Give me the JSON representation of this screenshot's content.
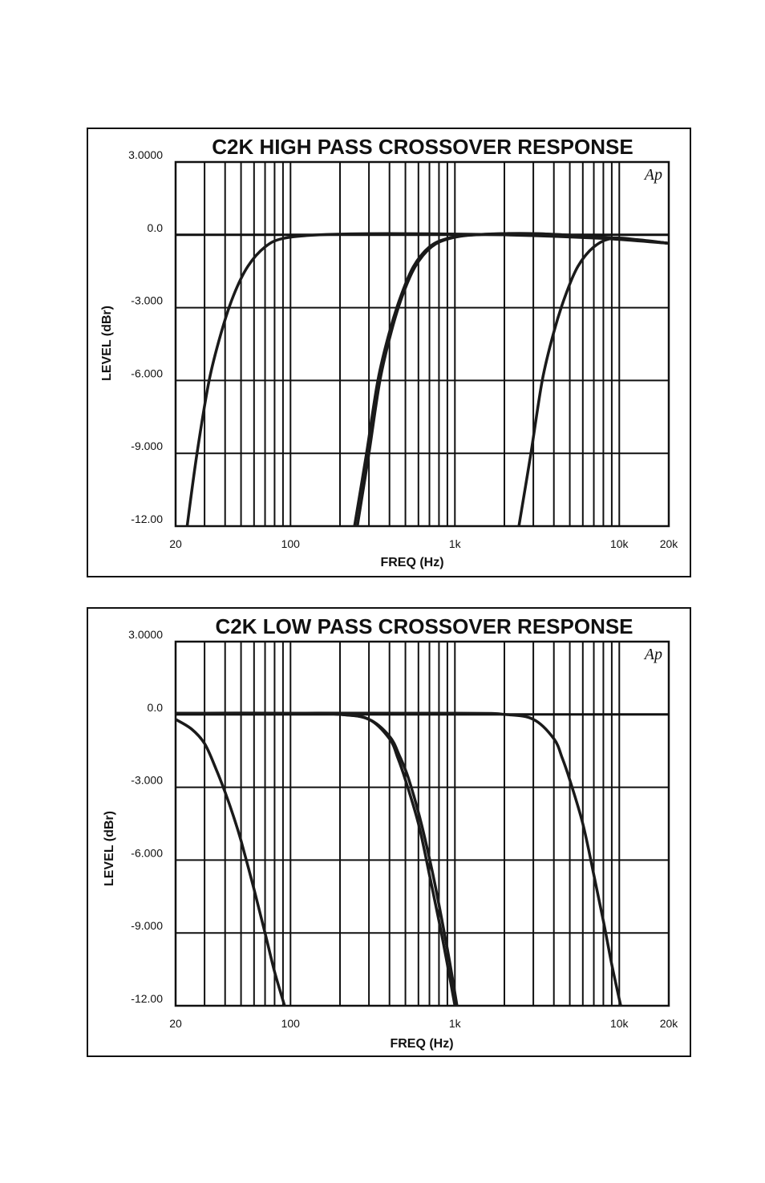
{
  "chart_data": [
    {
      "type": "line",
      "title": "C2K HIGH PASS CROSSOVER RESPONSE",
      "xlabel": "FREQ (Hz)",
      "ylabel": "LEVEL (dBr)",
      "logo": "Ap",
      "x_scale": "log",
      "xlim": [
        20,
        20000
      ],
      "ylim": [
        -12,
        3
      ],
      "x_ticks": [
        {
          "value": 20,
          "label": "20"
        },
        {
          "value": 100,
          "label": "100"
        },
        {
          "value": 1000,
          "label": "1k"
        },
        {
          "value": 10000,
          "label": "10k"
        },
        {
          "value": 20000,
          "label": "20k"
        }
      ],
      "y_ticks": [
        {
          "value": 3,
          "label": "3.0000"
        },
        {
          "value": 0,
          "label": "0.0"
        },
        {
          "value": -3,
          "label": "-3.000"
        },
        {
          "value": -6,
          "label": "-6.000"
        },
        {
          "value": -9,
          "label": "-9.000"
        },
        {
          "value": -12,
          "label": "-12.00"
        }
      ],
      "grid": true,
      "series": [
        {
          "x": [
            23.5,
            27,
            32,
            38,
            45,
            55,
            70,
            90,
            150,
            400,
            2000,
            8000,
            20000
          ],
          "y": [
            -12,
            -9,
            -6,
            -4,
            -2.5,
            -1.3,
            -0.5,
            -0.15,
            0,
            0.05,
            0,
            -0.15,
            -0.35
          ]
        },
        {
          "x": [
            245,
            290,
            340,
            400,
            470,
            560,
            700,
            900,
            1300,
            3000,
            10000,
            20000
          ],
          "y": [
            -12,
            -9,
            -6,
            -4,
            -2.5,
            -1.3,
            -0.5,
            -0.15,
            0,
            0.05,
            -0.15,
            -0.35
          ]
        },
        {
          "x": [
            255,
            300,
            350,
            410,
            480,
            575,
            720,
            930,
            1350,
            3000,
            10000,
            20000
          ],
          "y": [
            -12,
            -9,
            -6,
            -4,
            -2.5,
            -1.3,
            -0.5,
            -0.15,
            0,
            0.05,
            -0.15,
            -0.35
          ]
        },
        {
          "x": [
            2450,
            2900,
            3400,
            4000,
            4700,
            5600,
            7000,
            9000,
            13000,
            20000
          ],
          "y": [
            -12,
            -9,
            -6,
            -4,
            -2.5,
            -1.3,
            -0.5,
            -0.15,
            -0.2,
            -0.35
          ]
        }
      ]
    },
    {
      "type": "line",
      "title": "C2K LOW PASS CROSSOVER RESPONSE",
      "xlabel": "FREQ (Hz)",
      "ylabel": "LEVEL (dBr)",
      "logo": "Ap",
      "x_scale": "log",
      "xlim": [
        20,
        20000
      ],
      "ylim": [
        -12,
        3
      ],
      "x_ticks": [
        {
          "value": 20,
          "label": "20"
        },
        {
          "value": 100,
          "label": "100"
        },
        {
          "value": 1000,
          "label": "1k"
        },
        {
          "value": 10000,
          "label": "10k"
        },
        {
          "value": 20000,
          "label": "20k"
        }
      ],
      "y_ticks": [
        {
          "value": 3,
          "label": "3.0000"
        },
        {
          "value": 0,
          "label": "0.0"
        },
        {
          "value": -3,
          "label": "-3.000"
        },
        {
          "value": -6,
          "label": "-6.000"
        },
        {
          "value": -9,
          "label": "-9.000"
        },
        {
          "value": -12,
          "label": "-12.00"
        }
      ],
      "grid": true,
      "series": [
        {
          "x": [
            20,
            25,
            30,
            35,
            40,
            45,
            50,
            60,
            70,
            80,
            92
          ],
          "y": [
            -0.2,
            -0.6,
            -1.2,
            -2.2,
            -3.2,
            -4.2,
            -5.2,
            -7.2,
            -9.0,
            -10.6,
            -12
          ]
        },
        {
          "x": [
            20,
            100,
            200,
            300,
            400,
            450,
            500,
            600,
            700,
            800,
            900,
            1000
          ],
          "y": [
            0.05,
            0.05,
            0,
            -0.2,
            -1.0,
            -1.8,
            -2.7,
            -4.5,
            -6.6,
            -8.5,
            -10.3,
            -12
          ]
        },
        {
          "x": [
            20,
            100,
            200,
            300,
            400,
            460,
            520,
            620,
            730,
            830,
            930,
            1030
          ],
          "y": [
            0.05,
            0.05,
            0,
            -0.2,
            -0.9,
            -1.7,
            -2.6,
            -4.4,
            -6.5,
            -8.4,
            -10.2,
            -12
          ]
        },
        {
          "x": [
            20,
            1000,
            2000,
            3000,
            4000,
            4500,
            5000,
            6000,
            7000,
            8000,
            9000,
            10200
          ],
          "y": [
            0.05,
            0.05,
            0,
            -0.2,
            -1.0,
            -1.8,
            -2.7,
            -4.5,
            -6.6,
            -8.5,
            -10.3,
            -12
          ]
        }
      ]
    }
  ]
}
